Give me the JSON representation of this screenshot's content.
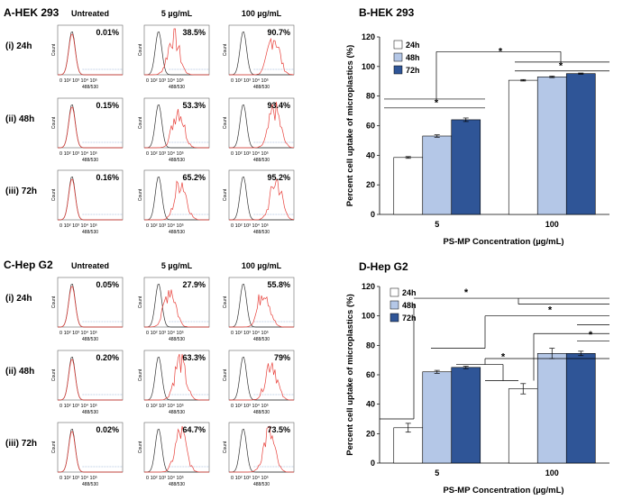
{
  "flow_panels": [
    {
      "panel_title": "A-HEK 293",
      "conditions": [
        "Untreated",
        "5 µg/mL",
        "100 µg/mL"
      ],
      "rows": [
        {
          "label": "(i) 24h",
          "percents": [
            "0.01%",
            "38.5%",
            "90.7%"
          ],
          "shift": [
            0.0,
            0.42,
            0.85
          ]
        },
        {
          "label": "(ii) 48h",
          "percents": [
            "0.15%",
            "53.3%",
            "93.4%"
          ],
          "shift": [
            0.0,
            0.55,
            0.88
          ]
        },
        {
          "label": "(iii) 72h",
          "percents": [
            "0.16%",
            "65.2%",
            "95.2%"
          ],
          "shift": [
            0.0,
            0.62,
            0.92
          ]
        }
      ]
    },
    {
      "panel_title": "C-Hep G2",
      "conditions": [
        "Untreated",
        "5 µg/mL",
        "100 µg/mL"
      ],
      "rows": [
        {
          "label": "(i) 24h",
          "percents": [
            "0.05%",
            "27.9%",
            "55.8%"
          ],
          "shift": [
            0.0,
            0.32,
            0.58
          ]
        },
        {
          "label": "(ii) 48h",
          "percents": [
            "0.20%",
            "63.3%",
            "79%"
          ],
          "shift": [
            0.0,
            0.6,
            0.78
          ]
        },
        {
          "label": "(iii) 72h",
          "percents": [
            "0.02%",
            "64.7%",
            "73.5%"
          ],
          "shift": [
            0.0,
            0.62,
            0.72
          ]
        }
      ]
    }
  ],
  "flow_axes": {
    "y_label": "Count",
    "x_label": "488/530",
    "x_ticks": [
      "0",
      "10",
      "2",
      "10",
      "3",
      "10",
      "4",
      "10",
      "5"
    ]
  },
  "chart_data": [
    {
      "type": "bar",
      "title": "B-HEK 293",
      "categories": [
        "5",
        "100"
      ],
      "series": [
        {
          "name": "24h",
          "values": [
            38.5,
            90.7
          ],
          "errors": [
            0.6,
            0.5
          ],
          "color": "#ffffff"
        },
        {
          "name": "48h",
          "values": [
            53.0,
            93.0
          ],
          "errors": [
            0.8,
            0.5
          ],
          "color": "#b4c7e7"
        },
        {
          "name": "72h",
          "values": [
            64.0,
            95.2
          ],
          "errors": [
            1.2,
            0.4
          ],
          "color": "#2f5597"
        }
      ],
      "xlabel": "PS-MP Concentration (µg/mL)",
      "ylabel": "Percent cell uptake of microplastics (%)",
      "ylim": [
        0,
        120
      ],
      "yticks": [
        "0",
        "20",
        "40",
        "60",
        "80",
        "100",
        "120"
      ],
      "significance": [
        "*",
        "*",
        "*"
      ]
    },
    {
      "type": "bar",
      "title": "D-Hep G2",
      "categories": [
        "5",
        "100"
      ],
      "series": [
        {
          "name": "24h",
          "values": [
            24.0,
            50.5
          ],
          "errors": [
            3.0,
            3.5
          ],
          "color": "#ffffff"
        },
        {
          "name": "48h",
          "values": [
            62.0,
            74.5
          ],
          "errors": [
            1.0,
            3.5
          ],
          "color": "#b4c7e7"
        },
        {
          "name": "72h",
          "values": [
            65.0,
            74.5
          ],
          "errors": [
            0.8,
            1.5
          ],
          "color": "#2f5597"
        }
      ],
      "xlabel": "PS-MP Concentration (µg/mL)",
      "ylabel": "Percent cell uptake of microplastics (%)",
      "ylim": [
        0,
        120
      ],
      "yticks": [
        "0",
        "20",
        "40",
        "60",
        "80",
        "100",
        "120"
      ],
      "significance": [
        "*",
        "*",
        "*",
        "*"
      ]
    }
  ]
}
